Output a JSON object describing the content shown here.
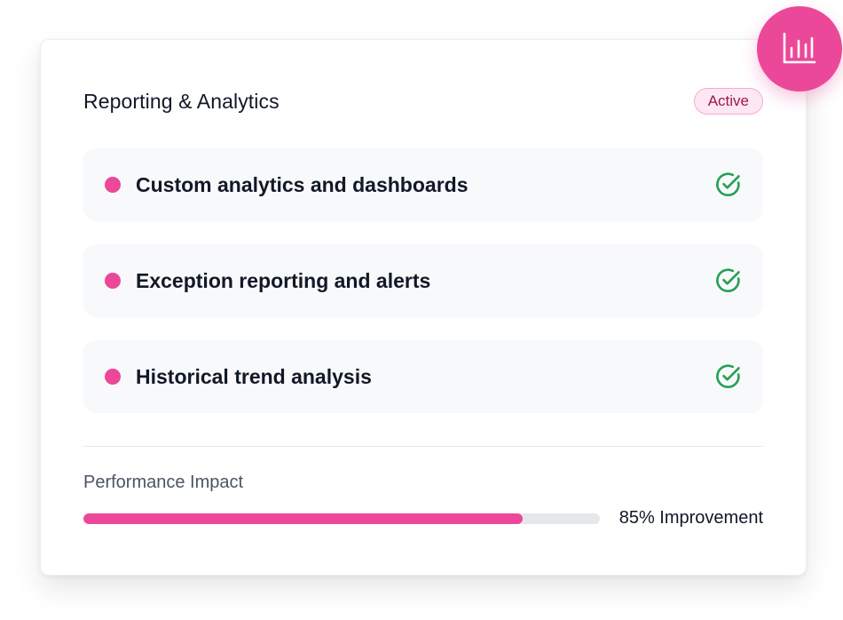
{
  "card": {
    "title": "Reporting & Analytics",
    "status": "Active",
    "features": [
      {
        "label": "Custom analytics and dashboards",
        "icon": "check-circle-icon"
      },
      {
        "label": "Exception reporting and alerts",
        "icon": "check-circle-icon"
      },
      {
        "label": "Historical trend analysis",
        "icon": "check-circle-icon"
      }
    ],
    "performance": {
      "label": "Performance Impact",
      "value_text": "85% Improvement",
      "progress_percent": 85
    }
  },
  "fab": {
    "icon": "bar-chart-icon"
  },
  "colors": {
    "accent": "#ec4899",
    "success": "#22a150",
    "badge_bg": "#fce7f3",
    "badge_text": "#9d174d",
    "item_bg": "#f8f9fb",
    "track": "#e5e7eb"
  }
}
